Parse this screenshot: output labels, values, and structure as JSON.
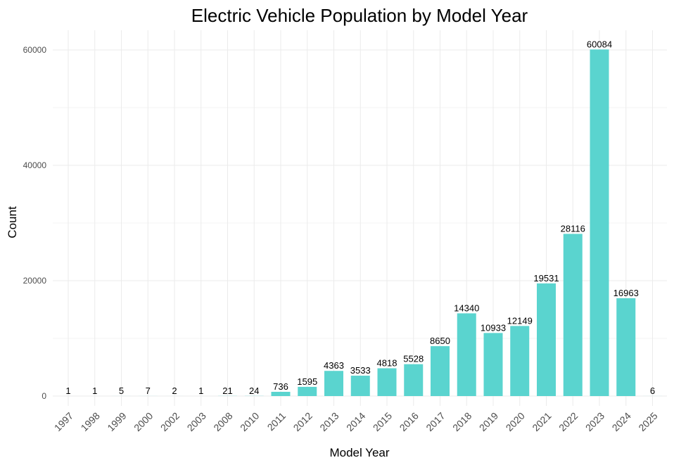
{
  "chart_data": {
    "type": "bar",
    "title": "Electric Vehicle Population by Model Year",
    "xlabel": "Model Year",
    "ylabel": "Count",
    "categories": [
      "1997",
      "1998",
      "1999",
      "2000",
      "2002",
      "2003",
      "2008",
      "2010",
      "2011",
      "2012",
      "2013",
      "2014",
      "2015",
      "2016",
      "2017",
      "2018",
      "2019",
      "2020",
      "2021",
      "2022",
      "2023",
      "2024",
      "2025"
    ],
    "values": [
      1,
      1,
      5,
      7,
      2,
      1,
      21,
      24,
      736,
      1595,
      4363,
      3533,
      4818,
      5528,
      8650,
      14340,
      10933,
      12149,
      19531,
      28116,
      60084,
      16963,
      6
    ],
    "y_ticks": [
      0,
      20000,
      40000,
      60000
    ],
    "ylim": [
      0,
      60084
    ],
    "grid": true,
    "legend": "none",
    "bar_color": "#5ad4cf",
    "data_labels": true
  }
}
